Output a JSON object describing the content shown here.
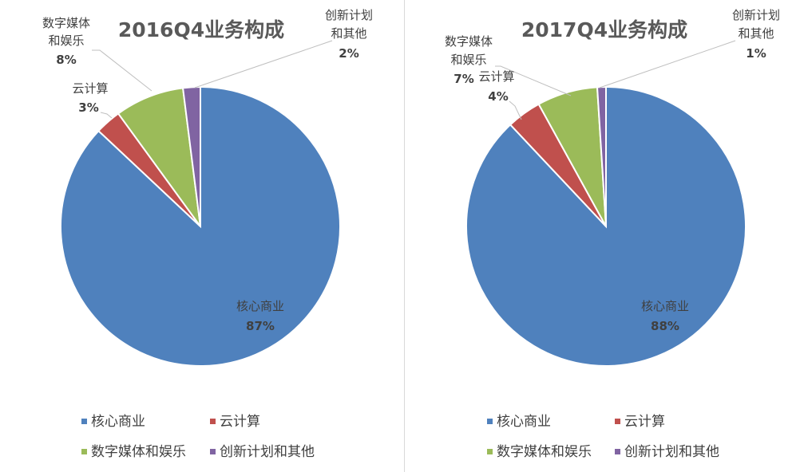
{
  "colors": {
    "core": "#4f81bd",
    "cloud": "#c0504d",
    "media": "#9bbb59",
    "innovation": "#8064a2"
  },
  "chart_data": [
    {
      "type": "pie",
      "title": "2016Q4业务构成",
      "categories": [
        "核心商业",
        "云计算",
        "数字媒体和娱乐",
        "创新计划和其他"
      ],
      "values": [
        87,
        3,
        8,
        2
      ],
      "data_labels": [
        {
          "name": "核心商业",
          "pct": "87%"
        },
        {
          "name": "云计算",
          "pct": "3%"
        },
        {
          "name_lines": [
            "数字媒体",
            "和娱乐"
          ],
          "pct": "8%"
        },
        {
          "name_lines": [
            "创新计划",
            "和其他"
          ],
          "pct": "2%"
        }
      ],
      "legend": {
        "placement": "bottom",
        "items": [
          "核心商业",
          "云计算",
          "数字媒体和娱乐",
          "创新计划和其他"
        ]
      }
    },
    {
      "type": "pie",
      "title": "2017Q4业务构成",
      "categories": [
        "核心商业",
        "云计算",
        "数字媒体和娱乐",
        "创新计划和其他"
      ],
      "values": [
        88,
        4,
        7,
        1
      ],
      "data_labels": [
        {
          "name": "核心商业",
          "pct": "88%"
        },
        {
          "name": "云计算",
          "pct": "4%"
        },
        {
          "name_lines": [
            "数字媒体",
            "和娱乐"
          ],
          "pct": "7%"
        },
        {
          "name_lines": [
            "创新计划",
            "和其他"
          ],
          "pct": "1%"
        }
      ],
      "legend": {
        "placement": "bottom",
        "items": [
          "核心商业",
          "云计算",
          "数字媒体和娱乐",
          "创新计划和其他"
        ]
      }
    }
  ]
}
